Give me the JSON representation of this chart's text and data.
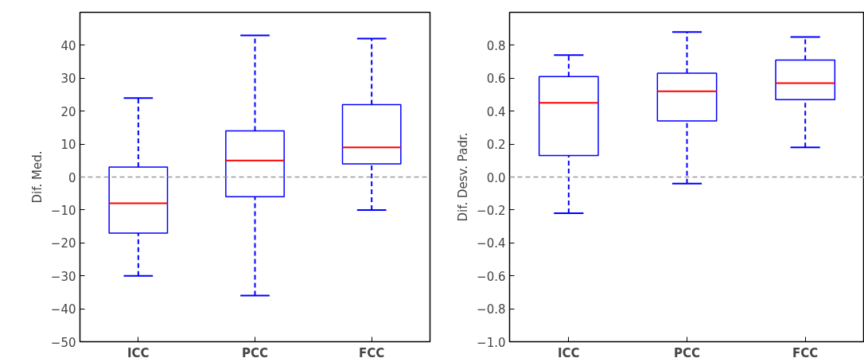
{
  "chart_data": [
    {
      "type": "box",
      "ylabel": "Dif. Med.",
      "categories": [
        "ICC",
        "PCC",
        "FCC"
      ],
      "ylim": [
        -50,
        50
      ],
      "yticks": [
        -50,
        -40,
        -30,
        -20,
        -10,
        0,
        10,
        20,
        30,
        40
      ],
      "grid": false,
      "series": [
        {
          "color": "#0000ff",
          "boxes": [
            {
              "low": -30,
              "q1": -17,
              "median": -8,
              "q3": 3,
              "high": 24
            },
            {
              "low": -36,
              "q1": -6,
              "median": 5,
              "q3": 14,
              "high": 43
            },
            {
              "low": -10,
              "q1": 4,
              "median": 9,
              "q3": 22,
              "high": 42
            }
          ]
        }
      ],
      "ref_lines": [
        {
          "axis": "y",
          "value": 0,
          "color": "#999999",
          "line_style": "dashed"
        }
      ]
    },
    {
      "type": "box",
      "ylabel": "Dif. Desv. Padr.",
      "categories": [
        "ICC",
        "PCC",
        "FCC"
      ],
      "ylim": [
        -1.0,
        1.0
      ],
      "yticks": [
        {
          "value": -1.0,
          "label": "−1.0"
        },
        {
          "value": -0.8,
          "label": "−0.8"
        },
        {
          "value": -0.6,
          "label": "−0.6"
        },
        {
          "value": -0.4,
          "label": "−0.4"
        },
        {
          "value": -0.2,
          "label": "−0.2"
        },
        {
          "value": 0.0,
          "label": "0.0"
        },
        {
          "value": 0.2,
          "label": "0.2"
        },
        {
          "value": 0.4,
          "label": "0.4"
        },
        {
          "value": 0.6,
          "label": "0.6"
        },
        {
          "value": 0.8,
          "label": "0.8"
        }
      ],
      "grid": false,
      "series": [
        {
          "color": "#0000ff",
          "boxes": [
            {
              "low": -0.22,
              "q1": 0.13,
              "median": 0.45,
              "q3": 0.61,
              "high": 0.74
            },
            {
              "low": -0.04,
              "q1": 0.34,
              "median": 0.52,
              "q3": 0.63,
              "high": 0.88
            },
            {
              "low": 0.18,
              "q1": 0.47,
              "median": 0.57,
              "q3": 0.71,
              "high": 0.85
            }
          ]
        }
      ],
      "ref_lines": [
        {
          "axis": "y",
          "value": 0,
          "color": "#999999",
          "line_style": "dashed"
        }
      ]
    }
  ]
}
